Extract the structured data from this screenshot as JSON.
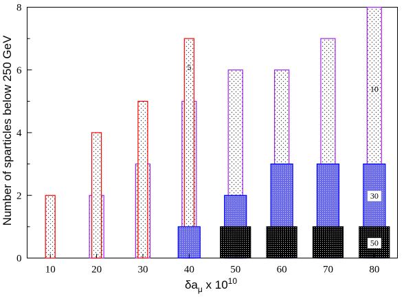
{
  "chart_data": {
    "type": "bar",
    "xlabel": "δa",
    "xlabel_sub": "μ",
    "xlabel_suffix": " x 10",
    "xlabel_sup": "10",
    "ylabel": "Number of sparticles below 250 GeV",
    "categories": [
      10,
      20,
      30,
      40,
      50,
      60,
      70,
      80
    ],
    "ylim": [
      0,
      8
    ],
    "yticks": [
      0,
      2,
      4,
      6,
      8
    ],
    "grid": false,
    "series": [
      {
        "name": "5",
        "color": "#ff0000",
        "fill": "dotted-light",
        "values": [
          2,
          4,
          5,
          7,
          null,
          null,
          null,
          null
        ]
      },
      {
        "name": "10",
        "color": "#a020f0",
        "fill": "dotted-light",
        "values": [
          null,
          2,
          3,
          5,
          6,
          6,
          7,
          8
        ]
      },
      {
        "name": "30",
        "color": "#0000ff",
        "fill": "dotted-blue",
        "values": [
          null,
          null,
          null,
          1,
          2,
          3,
          3,
          3
        ]
      },
      {
        "name": "50",
        "color": "#000000",
        "fill": "dotted-black",
        "values": [
          null,
          null,
          null,
          null,
          1,
          1,
          1,
          1
        ]
      }
    ],
    "annotations": [
      "5",
      "10",
      "30",
      "50"
    ]
  }
}
